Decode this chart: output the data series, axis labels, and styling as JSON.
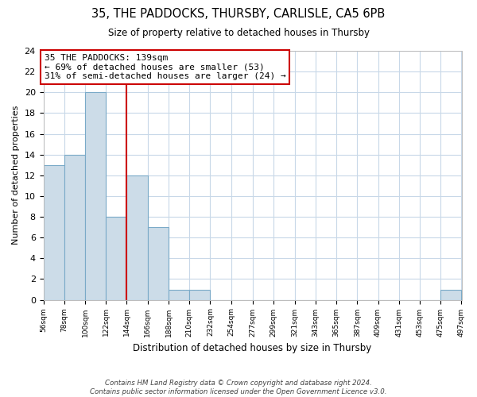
{
  "title": "35, THE PADDOCKS, THURSBY, CARLISLE, CA5 6PB",
  "subtitle": "Size of property relative to detached houses in Thursby",
  "xlabel": "Distribution of detached houses by size in Thursby",
  "ylabel": "Number of detached properties",
  "bin_edges": [
    56,
    78,
    100,
    122,
    144,
    166,
    188,
    210,
    232,
    254,
    277,
    299,
    321,
    343,
    365,
    387,
    409,
    431,
    453,
    475,
    497
  ],
  "bin_labels": [
    "56sqm",
    "78sqm",
    "100sqm",
    "122sqm",
    "144sqm",
    "166sqm",
    "188sqm",
    "210sqm",
    "232sqm",
    "254sqm",
    "277sqm",
    "299sqm",
    "321sqm",
    "343sqm",
    "365sqm",
    "387sqm",
    "409sqm",
    "431sqm",
    "453sqm",
    "475sqm",
    "497sqm"
  ],
  "counts": [
    13,
    14,
    20,
    8,
    12,
    7,
    1,
    1,
    0,
    0,
    0,
    0,
    0,
    0,
    0,
    0,
    0,
    0,
    0,
    1
  ],
  "bar_color": "#ccdce8",
  "bar_edgecolor": "#7aaac8",
  "property_line_x": 144,
  "vline_color": "#cc0000",
  "annotation_text": "35 THE PADDOCKS: 139sqm\n← 69% of detached houses are smaller (53)\n31% of semi-detached houses are larger (24) →",
  "annotation_box_edgecolor": "#cc0000",
  "ylim": [
    0,
    24
  ],
  "yticks": [
    0,
    2,
    4,
    6,
    8,
    10,
    12,
    14,
    16,
    18,
    20,
    22,
    24
  ],
  "footnote": "Contains HM Land Registry data © Crown copyright and database right 2024.\nContains public sector information licensed under the Open Government Licence v3.0.",
  "background_color": "#ffffff",
  "grid_color": "#c8d8e8"
}
